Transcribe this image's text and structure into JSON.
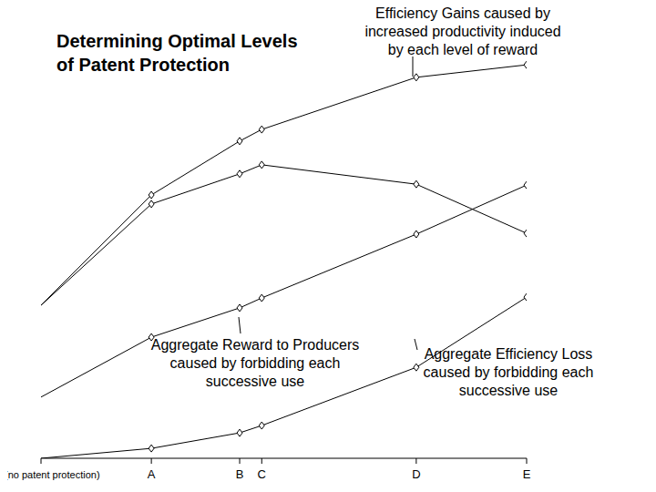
{
  "chart_data": {
    "type": "line",
    "title": "Determining Optimal Levels\nof Patent Protection",
    "x": [
      0,
      1,
      1.8,
      2.0,
      3.4,
      4.4
    ],
    "xticks": [
      {
        "value": 0,
        "label": "(no patent protection)"
      },
      {
        "value": 1,
        "label": "A"
      },
      {
        "value": 1.8,
        "label": "B"
      },
      {
        "value": 2.0,
        "label": "C"
      },
      {
        "value": 3.4,
        "label": "D"
      },
      {
        "value": 4.4,
        "label": "E"
      }
    ],
    "xlim": [
      0,
      4.4
    ],
    "ylim": [
      0,
      100
    ],
    "tick_labels": "x",
    "grid": false,
    "marker": "diamond",
    "series": [
      {
        "name": "Efficiency Gains caused by\nincreased productivity induced\nby each level of reward",
        "color": "#000000",
        "values": [
          35.5,
          61.1,
          73.6,
          76.3,
          88.4,
          91.3
        ]
      },
      {
        "color": "#000000",
        "values": [
          35.5,
          59.0,
          66.0,
          68.1,
          63.6,
          52.2
        ]
      },
      {
        "name": "Aggregate Reward to Producers\ncaused by forbidding each\nsuccessive use",
        "color": "#000000",
        "values": [
          14.2,
          28.1,
          34.9,
          37.2,
          52.0,
          63.4
        ]
      },
      {
        "name": "Aggregate Efficiency Loss\ncaused by forbidding each\nsuccessive use",
        "color": "#000000",
        "values": [
          0,
          2.3,
          5.9,
          7.6,
          21.1,
          37.4
        ]
      }
    ]
  }
}
